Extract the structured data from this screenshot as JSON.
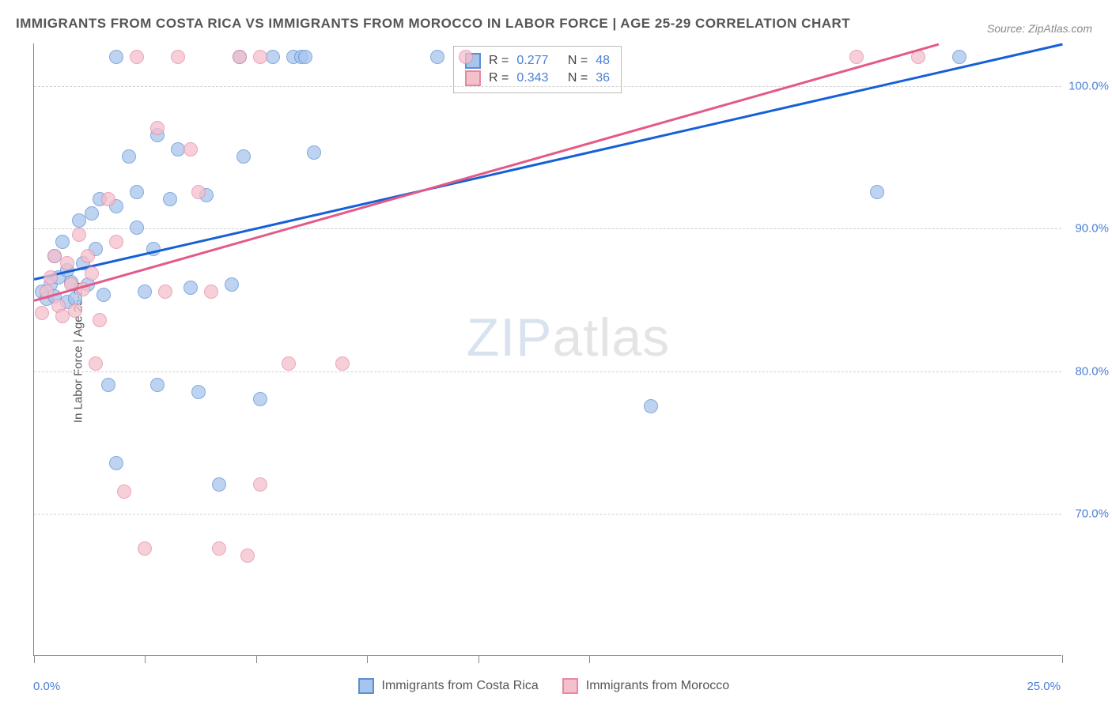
{
  "title": "IMMIGRANTS FROM COSTA RICA VS IMMIGRANTS FROM MOROCCO IN LABOR FORCE | AGE 25-29 CORRELATION CHART",
  "source": "Source: ZipAtlas.com",
  "ylabel": "In Labor Force | Age 25-29",
  "watermark_zip": "ZIP",
  "watermark_atlas": "atlas",
  "chart": {
    "type": "scatter",
    "xlim": [
      0,
      25
    ],
    "ylim": [
      60,
      103
    ],
    "ytick_values": [
      70,
      80,
      90,
      100
    ],
    "ytick_labels": [
      "70.0%",
      "80.0%",
      "90.0%",
      "100.0%"
    ],
    "xtick_values": [
      0,
      2.7,
      5.4,
      8.1,
      10.8,
      13.5,
      25
    ],
    "xtick_label_0": "0.0%",
    "xtick_label_end": "25.0%",
    "grid_color": "#d0d0d0",
    "axis_color": "#888888",
    "point_radius": 9,
    "point_opacity": 0.75
  },
  "series": [
    {
      "name": "Immigrants from Costa Rica",
      "color_fill": "#a7c5ec",
      "color_stroke": "#5a8fd6",
      "r": "0.277",
      "n": "48",
      "regression": {
        "x1": 0,
        "y1": 86.5,
        "x2": 25,
        "y2": 103,
        "color": "#1560d6"
      },
      "points": [
        [
          0.2,
          85.5
        ],
        [
          0.3,
          85.0
        ],
        [
          0.4,
          86.0
        ],
        [
          0.5,
          85.2
        ],
        [
          0.5,
          88.0
        ],
        [
          0.6,
          86.5
        ],
        [
          0.7,
          89.0
        ],
        [
          0.8,
          87.0
        ],
        [
          0.8,
          84.8
        ],
        [
          0.9,
          86.2
        ],
        [
          1.0,
          85.0
        ],
        [
          1.1,
          90.5
        ],
        [
          1.2,
          87.5
        ],
        [
          1.3,
          86.0
        ],
        [
          1.4,
          91.0
        ],
        [
          1.5,
          88.5
        ],
        [
          1.6,
          92.0
        ],
        [
          1.7,
          85.3
        ],
        [
          1.8,
          79.0
        ],
        [
          2.0,
          73.5
        ],
        [
          2.0,
          91.5
        ],
        [
          2.0,
          102.0
        ],
        [
          2.3,
          95.0
        ],
        [
          2.5,
          92.5
        ],
        [
          2.5,
          90.0
        ],
        [
          2.7,
          85.5
        ],
        [
          2.9,
          88.5
        ],
        [
          3.0,
          96.5
        ],
        [
          3.0,
          79.0
        ],
        [
          3.3,
          92.0
        ],
        [
          3.5,
          95.5
        ],
        [
          3.8,
          85.8
        ],
        [
          4.0,
          78.5
        ],
        [
          4.2,
          92.3
        ],
        [
          4.5,
          72.0
        ],
        [
          4.8,
          86.0
        ],
        [
          5.0,
          102.0
        ],
        [
          5.1,
          95.0
        ],
        [
          5.5,
          78.0
        ],
        [
          5.8,
          102.0
        ],
        [
          6.3,
          102.0
        ],
        [
          6.5,
          102.0
        ],
        [
          6.6,
          102.0
        ],
        [
          6.8,
          95.3
        ],
        [
          9.8,
          102.0
        ],
        [
          15.0,
          77.5
        ],
        [
          20.5,
          92.5
        ],
        [
          22.5,
          102.0
        ]
      ]
    },
    {
      "name": "Immigrants from Morocco",
      "color_fill": "#f4c0cc",
      "color_stroke": "#e889a2",
      "r": "0.343",
      "n": "36",
      "regression": {
        "x1": 0,
        "y1": 85.0,
        "x2": 22,
        "y2": 103,
        "color": "#e35a87"
      },
      "points": [
        [
          0.2,
          84.0
        ],
        [
          0.3,
          85.5
        ],
        [
          0.4,
          86.5
        ],
        [
          0.5,
          88.0
        ],
        [
          0.6,
          84.5
        ],
        [
          0.7,
          83.8
        ],
        [
          0.8,
          87.5
        ],
        [
          0.9,
          86.0
        ],
        [
          1.0,
          84.2
        ],
        [
          1.1,
          89.5
        ],
        [
          1.2,
          85.7
        ],
        [
          1.3,
          88.0
        ],
        [
          1.4,
          86.8
        ],
        [
          1.5,
          80.5
        ],
        [
          1.6,
          83.5
        ],
        [
          1.8,
          92.0
        ],
        [
          2.0,
          89.0
        ],
        [
          2.2,
          71.5
        ],
        [
          2.5,
          102.0
        ],
        [
          2.7,
          67.5
        ],
        [
          3.0,
          97.0
        ],
        [
          3.2,
          85.5
        ],
        [
          3.5,
          102.0
        ],
        [
          3.8,
          95.5
        ],
        [
          4.0,
          92.5
        ],
        [
          4.3,
          85.5
        ],
        [
          4.5,
          67.5
        ],
        [
          5.0,
          102.0
        ],
        [
          5.2,
          67.0
        ],
        [
          5.5,
          72.0
        ],
        [
          5.5,
          102.0
        ],
        [
          6.2,
          80.5
        ],
        [
          7.5,
          80.5
        ],
        [
          10.5,
          102.0
        ],
        [
          20.0,
          102.0
        ],
        [
          21.5,
          102.0
        ]
      ]
    }
  ],
  "stats_labels": {
    "r_prefix": "R =",
    "n_prefix": "N ="
  },
  "legend_footer": {
    "item1": "Immigrants from Costa Rica",
    "item2": "Immigrants from Morocco"
  }
}
